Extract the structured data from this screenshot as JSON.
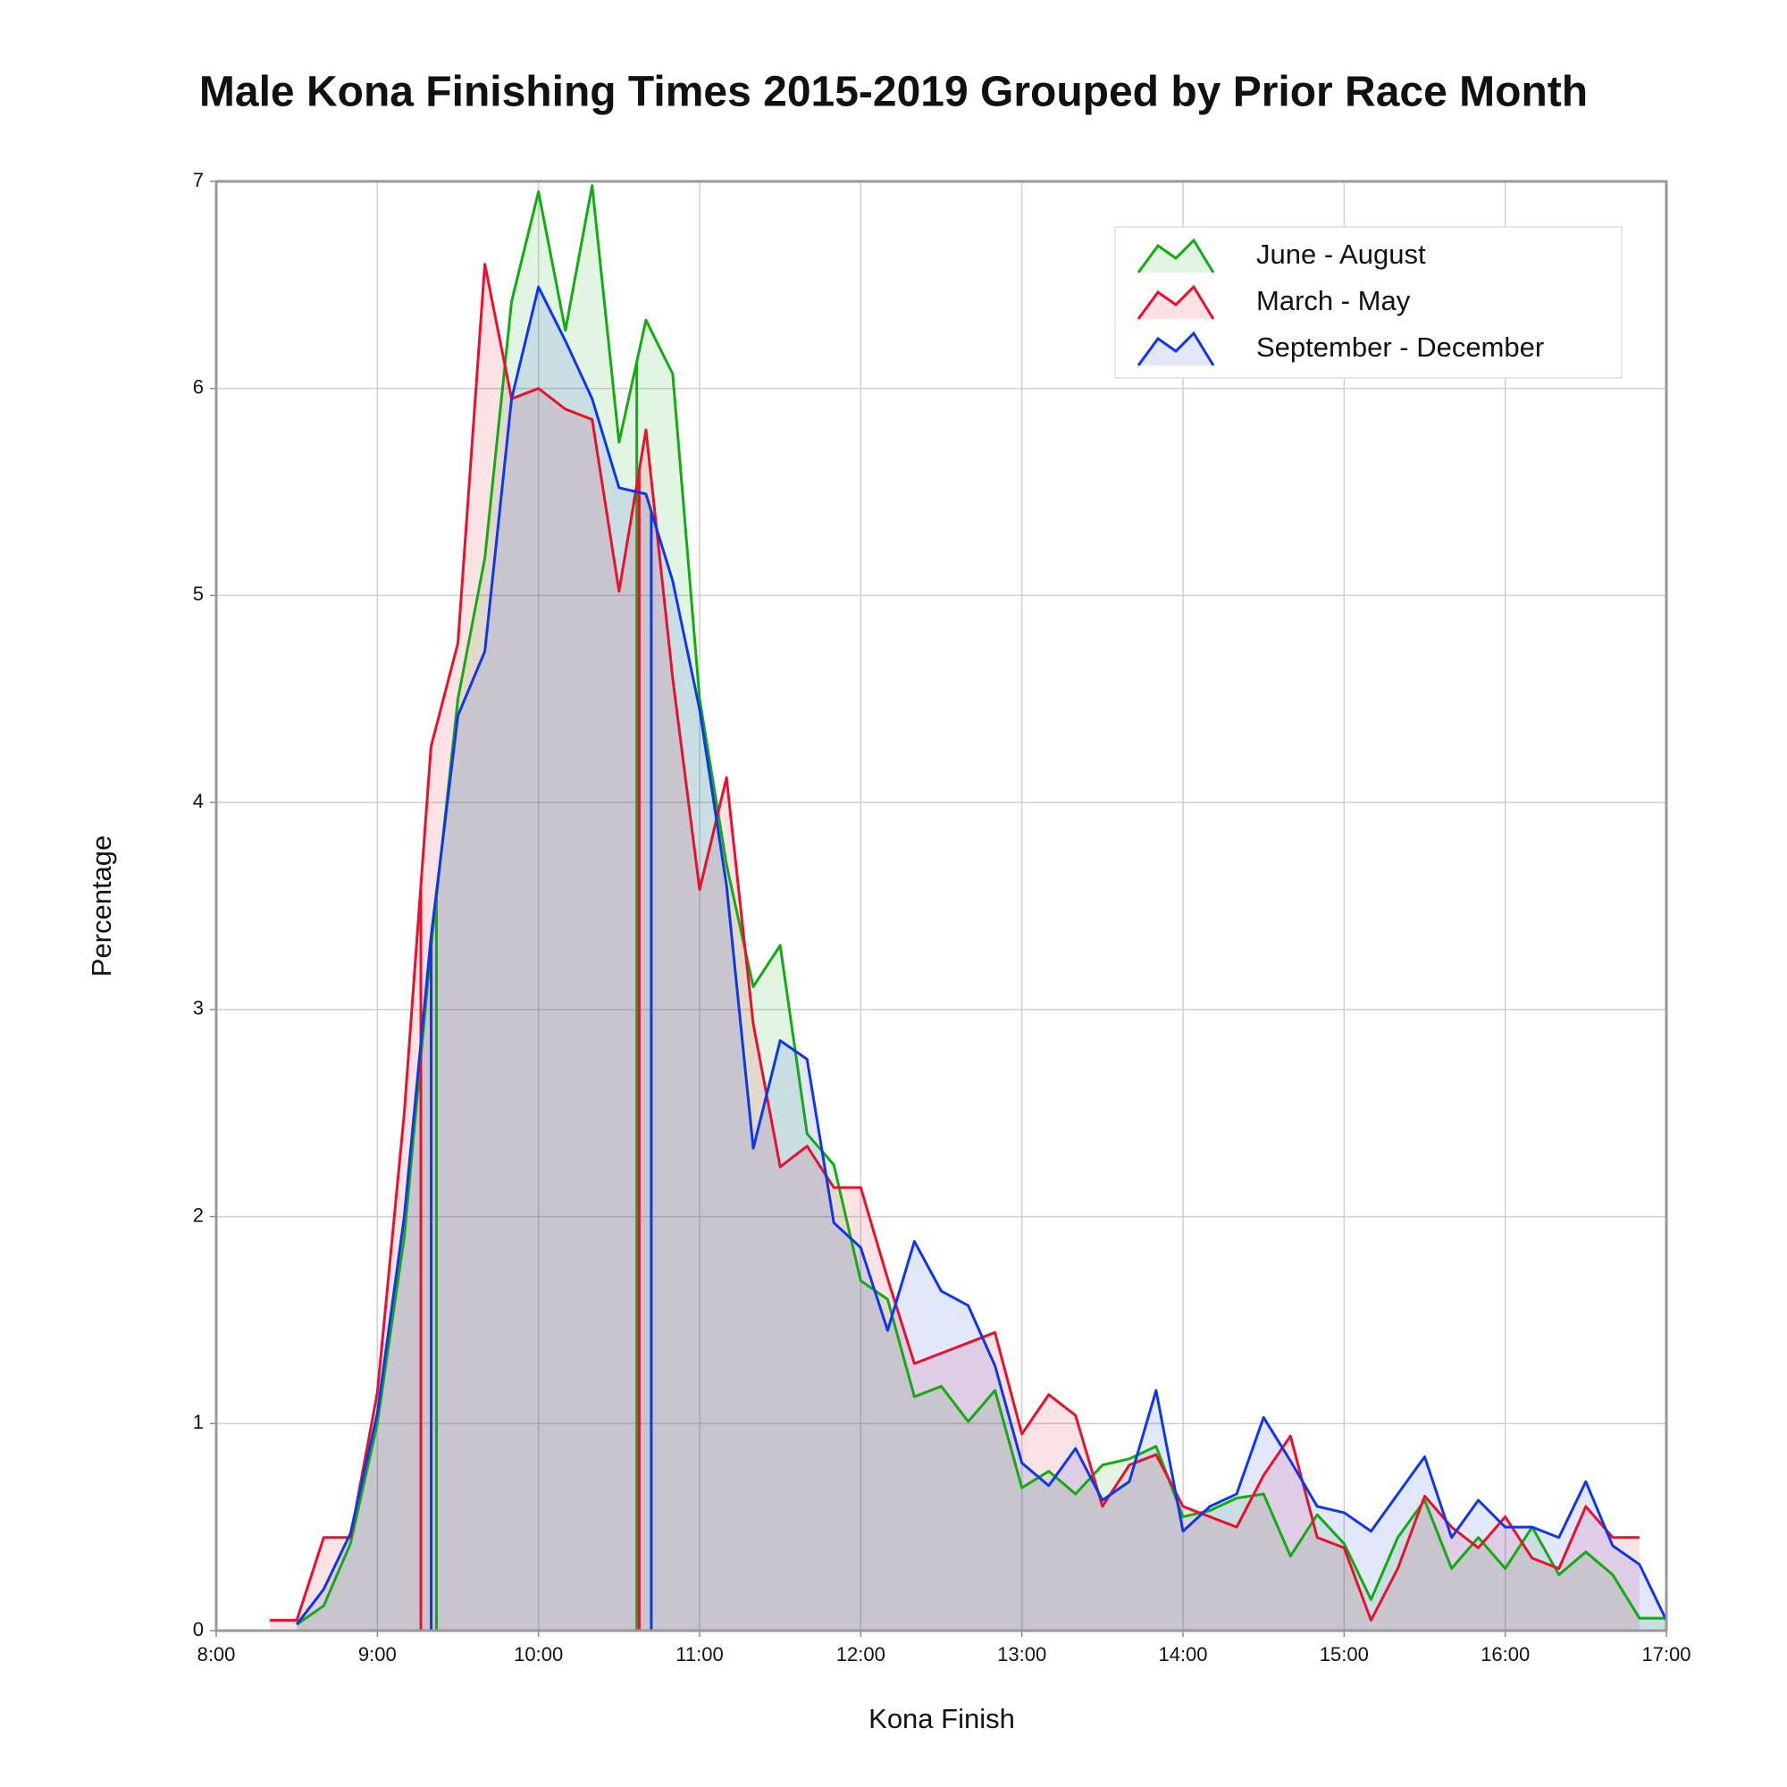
{
  "chart_data": {
    "type": "line",
    "title": "Male Kona Finishing Times 2015-2019 Grouped by Prior Race Month",
    "x_label": "Kona Finish",
    "y_label": "Percentage",
    "x": [
      8.333,
      8.5,
      8.667,
      8.833,
      9.0,
      9.167,
      9.333,
      9.5,
      9.667,
      9.833,
      10.0,
      10.167,
      10.333,
      10.5,
      10.667,
      10.833,
      11.0,
      11.167,
      11.333,
      11.5,
      11.667,
      11.833,
      12.0,
      12.167,
      12.333,
      12.5,
      12.667,
      12.833,
      13.0,
      13.167,
      13.333,
      13.5,
      13.667,
      13.833,
      14.0,
      14.167,
      14.333,
      14.5,
      14.667,
      14.833,
      15.0,
      15.167,
      15.333,
      15.5,
      15.667,
      15.833,
      16.0,
      16.167,
      16.333,
      16.5,
      16.667,
      16.833,
      17.0
    ],
    "series": [
      {
        "name": "June - August",
        "color": "#13ab13",
        "vlines": [
          9.367,
          10.61
        ],
        "values": [
          null,
          0.03,
          0.12,
          0.42,
          1.0,
          1.9,
          3.3,
          4.5,
          5.18,
          6.42,
          6.95,
          6.28,
          6.98,
          5.74,
          6.33,
          6.07,
          4.5,
          3.7,
          3.11,
          3.31,
          2.4,
          2.25,
          1.69,
          1.6,
          1.13,
          1.18,
          1.01,
          1.16,
          0.69,
          0.77,
          0.66,
          0.8,
          0.83,
          0.89,
          0.55,
          0.58,
          0.64,
          0.66,
          0.36,
          0.56,
          0.42,
          0.15,
          0.45,
          0.63,
          0.3,
          0.45,
          0.3,
          0.5,
          0.27,
          0.38,
          0.27,
          0.06,
          0.06
        ]
      },
      {
        "name": "March - May",
        "color": "#e8112d",
        "vlines": [
          9.27,
          10.625
        ],
        "values": [
          0.05,
          0.05,
          0.45,
          0.45,
          1.15,
          2.5,
          4.27,
          4.77,
          6.6,
          5.95,
          6.0,
          5.9,
          5.85,
          5.02,
          5.8,
          4.6,
          3.58,
          4.12,
          2.93,
          2.24,
          2.34,
          2.14,
          2.14,
          1.7,
          1.29,
          1.34,
          1.39,
          1.44,
          0.95,
          1.14,
          1.04,
          0.6,
          0.8,
          0.85,
          0.6,
          0.55,
          0.5,
          0.75,
          0.94,
          0.45,
          0.4,
          0.05,
          0.3,
          0.65,
          0.5,
          0.4,
          0.55,
          0.35,
          0.3,
          0.6,
          0.45,
          0.45,
          null
        ]
      },
      {
        "name": "September - December",
        "color": "#1036ea",
        "vlines": [
          9.334,
          10.7
        ],
        "values": [
          null,
          0.03,
          0.2,
          0.47,
          1.05,
          2.0,
          3.35,
          4.42,
          4.73,
          5.95,
          6.49,
          6.23,
          5.95,
          5.52,
          5.49,
          5.07,
          4.45,
          3.6,
          2.33,
          2.85,
          2.76,
          1.97,
          1.85,
          1.45,
          1.88,
          1.64,
          1.57,
          1.28,
          0.81,
          0.7,
          0.88,
          0.63,
          0.72,
          1.16,
          0.48,
          0.6,
          0.66,
          1.03,
          0.82,
          0.6,
          0.57,
          0.48,
          0.66,
          0.84,
          0.45,
          0.63,
          0.5,
          0.5,
          0.45,
          0.72,
          0.41,
          0.32,
          0.05
        ]
      }
    ],
    "xlim": [
      8,
      17
    ],
    "xticks": [
      {
        "value": 8,
        "label": "8:00"
      },
      {
        "value": 9,
        "label": "9:00"
      },
      {
        "value": 10,
        "label": "10:00"
      },
      {
        "value": 11,
        "label": "11:00"
      },
      {
        "value": 12,
        "label": "12:00"
      },
      {
        "value": 13,
        "label": "13:00"
      },
      {
        "value": 14,
        "label": "14:00"
      },
      {
        "value": 15,
        "label": "15:00"
      },
      {
        "value": 16,
        "label": "16:00"
      },
      {
        "value": 17,
        "label": "17:00"
      }
    ],
    "ylim": [
      0,
      7
    ],
    "yticks": [
      0,
      1,
      2,
      3,
      4,
      5,
      6,
      7
    ],
    "grid": true,
    "legend": "upper right"
  }
}
